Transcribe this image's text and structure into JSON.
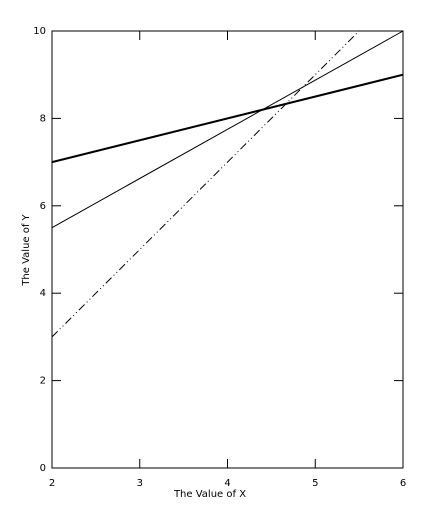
{
  "chart_data": {
    "type": "line",
    "x_label": "The Value of X",
    "y_label": "The Value of Y",
    "xlim": [
      2,
      6
    ],
    "ylim": [
      0,
      10
    ],
    "xticks": [
      2,
      3,
      4,
      5,
      6
    ],
    "yticks": [
      0,
      2,
      4,
      6,
      8,
      10
    ],
    "series": [
      {
        "color": "#000000",
        "linewidth": 2,
        "linestyle": "solid",
        "x": [
          2,
          6
        ],
        "values": [
          7,
          9
        ]
      },
      {
        "color": "#000000",
        "linewidth": 1,
        "linestyle": "solid",
        "x": [
          2,
          6
        ],
        "values": [
          5.5,
          10
        ]
      },
      {
        "color": "#000000",
        "linewidth": 1,
        "linestyle": "dash-dot-dot",
        "x": [
          2,
          5.5
        ],
        "values": [
          3,
          10
        ]
      }
    ]
  }
}
